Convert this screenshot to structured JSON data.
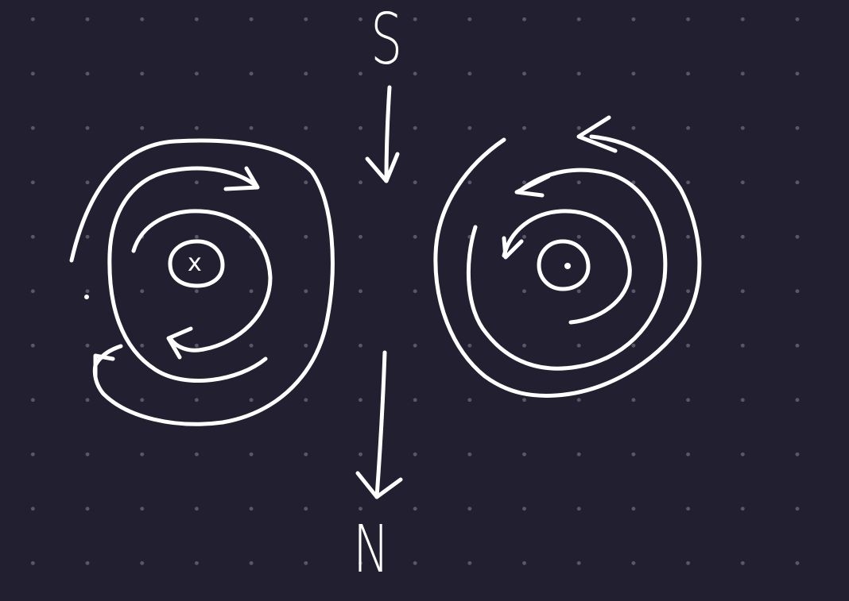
{
  "canvas": {
    "background": "#221f30",
    "grid_dot_color": "#5a5868",
    "ink_color": "#ffffff"
  },
  "labels": {
    "top_pole": "S",
    "bottom_pole": "N"
  },
  "left_conductor": {
    "center_mark": "x",
    "field_direction": "clockwise",
    "ring_count": 3
  },
  "right_conductor": {
    "center_mark": "dot",
    "field_direction": "counterclockwise",
    "ring_count": 3
  },
  "arrows": {
    "top_arrow": "down",
    "bottom_arrow": "down"
  }
}
